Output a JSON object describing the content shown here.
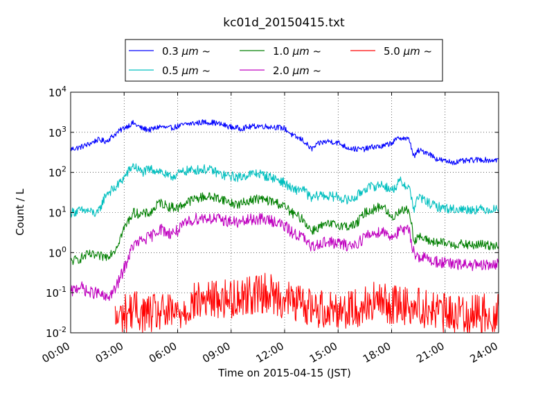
{
  "chart_data": {
    "type": "line",
    "title": "kc01d_20150415.txt",
    "xlabel": "Time on 2015-04-15 (JST)",
    "ylabel": "Count / L",
    "yscale": "log",
    "xlim": [
      "00:00",
      "24:00"
    ],
    "ylim": [
      0.01,
      10000
    ],
    "grid": true,
    "legend_position": "top-center",
    "x_ticks": [
      "00:00",
      "03:00",
      "06:00",
      "09:00",
      "12:00",
      "15:00",
      "18:00",
      "21:00",
      "24:00"
    ],
    "y_ticks": [
      {
        "value": 0.01,
        "base": "10",
        "exp": "-2"
      },
      {
        "value": 0.1,
        "base": "10",
        "exp": "-1"
      },
      {
        "value": 1,
        "base": "10",
        "exp": "0"
      },
      {
        "value": 10,
        "base": "10",
        "exp": "1"
      },
      {
        "value": 100,
        "base": "10",
        "exp": "2"
      },
      {
        "value": 1000,
        "base": "10",
        "exp": "3"
      },
      {
        "value": 10000,
        "base": "10",
        "exp": "4"
      }
    ],
    "series": [
      {
        "name": "0.3 μm ~",
        "color": "#0000ff",
        "x": [
          "00:00",
          "00:30",
          "01:00",
          "01:30",
          "02:00",
          "02:30",
          "03:00",
          "03:30",
          "04:00",
          "04:30",
          "05:00",
          "05:30",
          "06:00",
          "06:30",
          "07:00",
          "07:30",
          "08:00",
          "08:30",
          "09:00",
          "09:30",
          "10:00",
          "10:30",
          "11:00",
          "11:30",
          "12:00",
          "12:30",
          "13:00",
          "13:30",
          "14:00",
          "14:30",
          "15:00",
          "15:30",
          "16:00",
          "16:30",
          "17:00",
          "17:30",
          "18:00",
          "18:30",
          "19:00",
          "19:15",
          "19:30",
          "20:00",
          "20:30",
          "21:00",
          "21:30",
          "22:00",
          "22:30",
          "23:00",
          "23:30",
          "24:00"
        ],
        "y": [
          380,
          420,
          500,
          650,
          600,
          900,
          1300,
          1700,
          1250,
          1150,
          1400,
          1250,
          1400,
          1600,
          1700,
          1800,
          1750,
          1550,
          1350,
          1250,
          1350,
          1450,
          1400,
          1350,
          1250,
          800,
          650,
          380,
          550,
          600,
          550,
          420,
          380,
          380,
          440,
          440,
          550,
          750,
          650,
          240,
          350,
          320,
          220,
          190,
          180,
          190,
          200,
          210,
          200,
          210
        ],
        "noise": 0.07
      },
      {
        "name": "0.5 μm ~",
        "color": "#00bfbf",
        "x": [
          "00:00",
          "00:30",
          "01:00",
          "01:30",
          "02:00",
          "02:30",
          "03:00",
          "03:30",
          "04:00",
          "04:30",
          "05:00",
          "05:30",
          "06:00",
          "06:30",
          "07:00",
          "07:30",
          "08:00",
          "08:30",
          "09:00",
          "09:30",
          "10:00",
          "10:30",
          "11:00",
          "11:30",
          "12:00",
          "12:30",
          "13:00",
          "13:30",
          "14:00",
          "14:30",
          "15:00",
          "15:30",
          "16:00",
          "16:30",
          "17:00",
          "17:30",
          "18:00",
          "18:30",
          "19:00",
          "19:15",
          "19:30",
          "20:00",
          "20:30",
          "21:00",
          "21:30",
          "22:00",
          "22:30",
          "23:00",
          "23:30",
          "24:00"
        ],
        "y": [
          10,
          11,
          11,
          9,
          30,
          40,
          75,
          150,
          100,
          120,
          110,
          75,
          90,
          110,
          115,
          120,
          110,
          85,
          80,
          75,
          90,
          95,
          80,
          70,
          55,
          35,
          40,
          22,
          28,
          25,
          25,
          20,
          24,
          40,
          45,
          50,
          35,
          60,
          40,
          12,
          25,
          18,
          14,
          13,
          12,
          12,
          12,
          12,
          12,
          12
        ],
        "noise": 0.12
      },
      {
        "name": "1.0 μm ~",
        "color": "#007f00",
        "x": [
          "00:00",
          "00:30",
          "01:00",
          "01:30",
          "02:00",
          "02:30",
          "03:00",
          "03:30",
          "04:00",
          "04:30",
          "05:00",
          "05:30",
          "06:00",
          "06:30",
          "07:00",
          "07:30",
          "08:00",
          "08:30",
          "09:00",
          "09:30",
          "10:00",
          "10:30",
          "11:00",
          "11:30",
          "12:00",
          "12:30",
          "13:00",
          "13:30",
          "14:00",
          "14:30",
          "15:00",
          "15:30",
          "16:00",
          "16:30",
          "17:00",
          "17:30",
          "18:00",
          "18:30",
          "19:00",
          "19:15",
          "19:30",
          "20:00",
          "20:30",
          "21:00",
          "21:30",
          "22:00",
          "22:30",
          "23:00",
          "23:30",
          "24:00"
        ],
        "y": [
          0.6,
          0.7,
          0.9,
          0.8,
          0.8,
          1.2,
          4,
          10,
          9,
          10,
          18,
          14,
          13,
          18,
          22,
          25,
          24,
          22,
          17,
          16,
          20,
          22,
          20,
          18,
          14,
          9,
          7,
          3.5,
          4.5,
          5,
          5,
          4.5,
          5,
          10,
          12,
          15,
          7,
          12,
          11,
          2,
          2.5,
          2,
          1.8,
          1.7,
          1.6,
          1.6,
          1.5,
          1.6,
          1.5,
          1.6
        ],
        "noise": 0.12
      },
      {
        "name": "2.0 μm ~",
        "color": "#bf00bf",
        "x": [
          "00:00",
          "00:30",
          "01:00",
          "01:30",
          "02:00",
          "02:30",
          "03:00",
          "03:30",
          "04:00",
          "04:30",
          "05:00",
          "05:30",
          "06:00",
          "06:30",
          "07:00",
          "07:30",
          "08:00",
          "08:30",
          "09:00",
          "09:30",
          "10:00",
          "10:30",
          "11:00",
          "11:30",
          "12:00",
          "12:30",
          "13:00",
          "13:30",
          "14:00",
          "14:30",
          "15:00",
          "15:30",
          "16:00",
          "16:30",
          "17:00",
          "17:30",
          "18:00",
          "18:30",
          "19:00",
          "19:15",
          "19:30",
          "20:00",
          "20:30",
          "21:00",
          "21:30",
          "22:00",
          "22:30",
          "23:00",
          "23:30",
          "24:00"
        ],
        "y": [
          0.1,
          0.15,
          0.1,
          0.1,
          0.07,
          0.12,
          0.4,
          1.5,
          2,
          2.5,
          4,
          3,
          3.5,
          5.5,
          7,
          7.5,
          7,
          6.5,
          6,
          5.5,
          6.5,
          7,
          6.5,
          6,
          4.5,
          3,
          2.5,
          1.3,
          1.8,
          1.8,
          1.7,
          1.5,
          1.6,
          2.5,
          3,
          3.5,
          2.5,
          3.5,
          3.5,
          1,
          0.8,
          0.7,
          0.6,
          0.55,
          0.5,
          0.5,
          0.5,
          0.45,
          0.5,
          0.5
        ],
        "noise": 0.15
      },
      {
        "name": "5.0 μm ~",
        "color": "#ff0000",
        "x": [
          "02:30",
          "03:00",
          "03:30",
          "04:00",
          "05:00",
          "06:00",
          "07:00",
          "08:00",
          "09:00",
          "10:00",
          "11:00",
          "12:00",
          "13:00",
          "14:00",
          "15:00",
          "16:00",
          "17:00",
          "18:00",
          "19:00",
          "20:00",
          "21:00",
          "22:00",
          "23:00",
          "24:00"
        ],
        "y": [
          0.02,
          0.03,
          0.04,
          0.03,
          0.03,
          0.03,
          0.06,
          0.07,
          0.07,
          0.09,
          0.1,
          0.07,
          0.05,
          0.04,
          0.04,
          0.04,
          0.06,
          0.05,
          0.05,
          0.04,
          0.03,
          0.03,
          0.03,
          0.03
        ],
        "noise": 0.5
      }
    ]
  },
  "legend": {
    "items": [
      {
        "prefix": "0.3 ",
        "unit": "μm",
        "suffix": " ~",
        "color": "#0000ff"
      },
      {
        "prefix": "1.0 ",
        "unit": "μm",
        "suffix": " ~",
        "color": "#007f00"
      },
      {
        "prefix": "5.0 ",
        "unit": "μm",
        "suffix": " ~",
        "color": "#ff0000"
      },
      {
        "prefix": "0.5 ",
        "unit": "μm",
        "suffix": " ~",
        "color": "#00bfbf"
      },
      {
        "prefix": "2.0 ",
        "unit": "μm",
        "suffix": " ~",
        "color": "#bf00bf"
      }
    ]
  }
}
